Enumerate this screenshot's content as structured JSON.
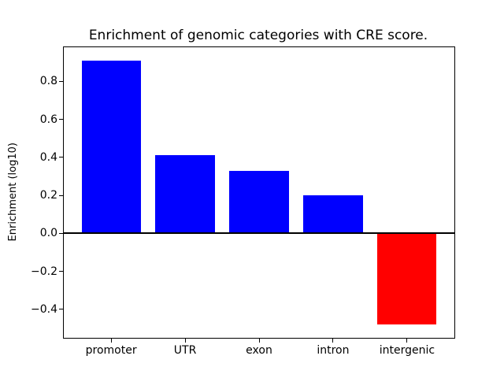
{
  "chart_data": {
    "type": "bar",
    "title": "Enrichment of genomic categories with CRE score.",
    "xlabel": "",
    "ylabel": "Enrichment (log10)",
    "categories": [
      "promoter",
      "UTR",
      "exon",
      "intron",
      "intergenic"
    ],
    "values": [
      0.91,
      0.41,
      0.33,
      0.2,
      -0.48
    ],
    "bar_colors": [
      "#0000ff",
      "#0000ff",
      "#0000ff",
      "#0000ff",
      "#ff0000"
    ],
    "positive_color": "#0000ff",
    "negative_color": "#ff0000",
    "ylim": [
      -0.55,
      0.98
    ],
    "xlim": [
      -0.64,
      4.64
    ],
    "yticks": [
      -0.4,
      -0.2,
      0.0,
      0.2,
      0.4,
      0.6,
      0.8
    ],
    "ytick_labels": [
      "−0.4",
      "−0.2",
      "0.0",
      "0.2",
      "0.4",
      "0.6",
      "0.8"
    ],
    "bar_width_fraction": 0.8,
    "grid": false,
    "legend": null,
    "zero_line": true,
    "axis_color": "#000000",
    "background_color": "#ffffff"
  }
}
